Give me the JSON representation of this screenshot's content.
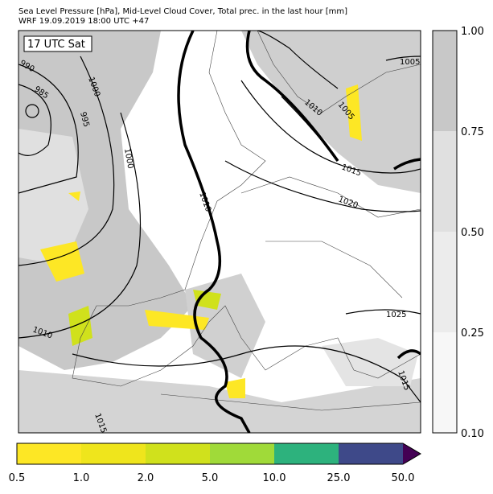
{
  "header": {
    "title": "Sea Level Pressure [hPa], Mid-Level Cloud Cover, Total prec. in the last hour [mm]",
    "subtitle": "WRF 19.09.2019 18:00 UTC +47"
  },
  "map": {
    "time_label": "17 UTC Sat",
    "contour_labels": [
      "990",
      "985",
      "1000",
      "995",
      "1000",
      "1010",
      "1010",
      "1005",
      "1005",
      "1015",
      "1020",
      "1010",
      "1025",
      "1015",
      "1015"
    ]
  },
  "cloud_colorbar": {
    "ticks": [
      "1.00",
      "0.75",
      "0.50",
      "0.25",
      "0.10"
    ]
  },
  "precip_colorbar": {
    "ticks": [
      "0.5",
      "1.0",
      "2.0",
      "5.0",
      "10.0",
      "25.0",
      "50.0"
    ]
  }
}
